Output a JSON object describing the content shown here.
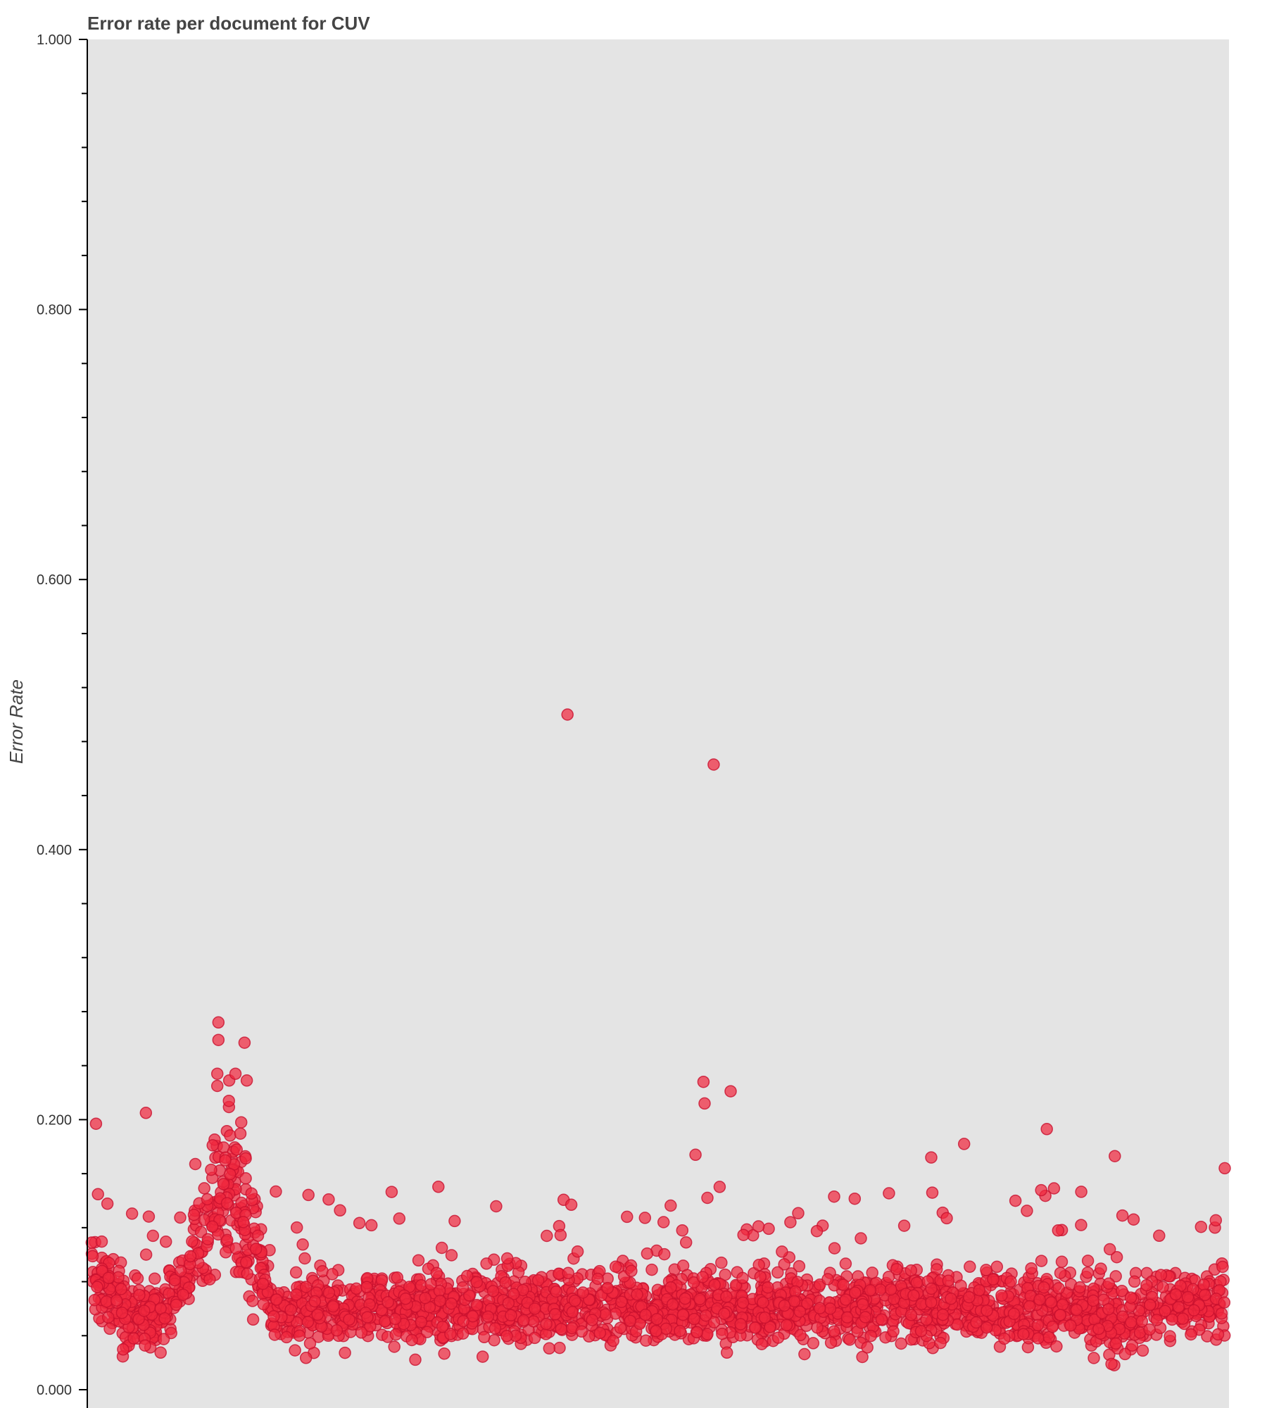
{
  "chart_data": {
    "type": "scatter",
    "title": "Error rate per document for CUV",
    "ylabel": "Error Rate",
    "xlabel": "",
    "ylim": [
      0,
      1
    ],
    "xlim": [
      0,
      1000
    ],
    "y_ticks": [
      "0.000",
      "0.200",
      "0.400",
      "0.600",
      "0.800",
      "1.000"
    ],
    "y_tick_values": [
      0,
      0.2,
      0.4,
      0.6,
      0.8,
      1.0
    ],
    "minor_tick_step": 0.04,
    "grid": false,
    "legend": "none",
    "colors": {
      "background": "#e4e4e4",
      "point_fill": "#f0283f",
      "point_stroke": "#c8102e"
    },
    "point_count": 2600,
    "outliers": [
      {
        "x": 420,
        "y": 0.5
      },
      {
        "x": 549,
        "y": 0.463
      },
      {
        "x": 540,
        "y": 0.228
      },
      {
        "x": 541,
        "y": 0.212
      },
      {
        "x": 564,
        "y": 0.221
      },
      {
        "x": 112,
        "y": 0.272
      },
      {
        "x": 112,
        "y": 0.259
      },
      {
        "x": 135,
        "y": 0.257
      },
      {
        "x": 111,
        "y": 0.234
      },
      {
        "x": 127,
        "y": 0.234
      },
      {
        "x": 111,
        "y": 0.225
      },
      {
        "x": 137,
        "y": 0.229
      },
      {
        "x": 4,
        "y": 0.197
      },
      {
        "x": 48,
        "y": 0.205
      },
      {
        "x": 843,
        "y": 0.193
      },
      {
        "x": 903,
        "y": 0.173
      },
      {
        "x": 770,
        "y": 0.182
      },
      {
        "x": 741,
        "y": 0.172
      },
      {
        "x": 533,
        "y": 0.174
      },
      {
        "x": 1000,
        "y": 0.164
      }
    ]
  }
}
